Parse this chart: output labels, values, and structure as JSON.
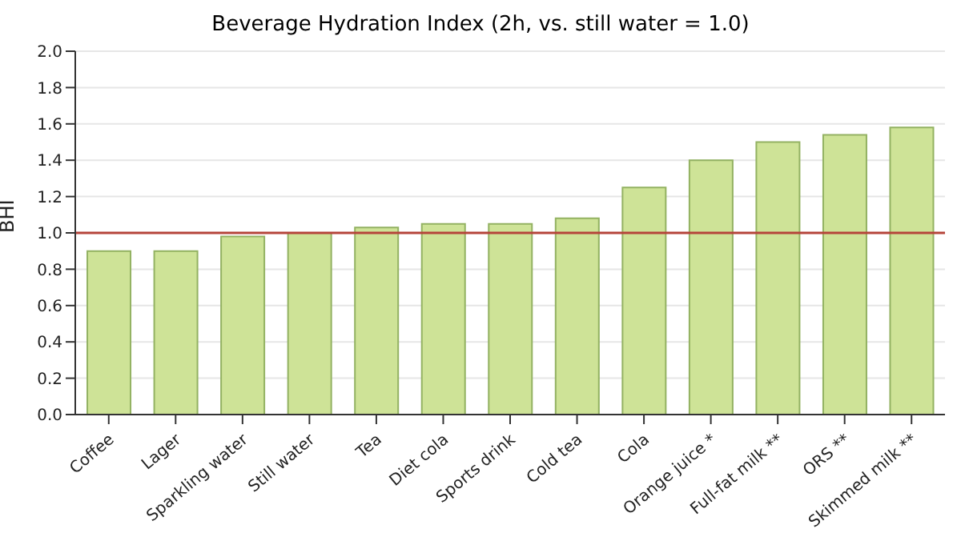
{
  "chart_data": {
    "type": "bar",
    "title": "Beverage Hydration Index (2h, vs. still water = 1.0)",
    "ylabel": "BHI",
    "categories": [
      "Coffee",
      "Lager",
      "Sparkling water",
      "Still water",
      "Tea",
      "Diet cola",
      "Sports drink",
      "Cold tea",
      "Cola",
      "Orange juice *",
      "Full-fat milk **",
      "ORS **",
      "Skimmed milk **"
    ],
    "values": [
      0.9,
      0.9,
      0.98,
      1.0,
      1.03,
      1.05,
      1.05,
      1.08,
      1.25,
      1.4,
      1.5,
      1.54,
      1.58
    ],
    "color": "#cee397",
    "ylim": [
      0,
      2
    ],
    "yticks": [
      {
        "value": 0,
        "label": "0.0"
      },
      {
        "value": 0.2,
        "label": "0.2"
      },
      {
        "value": 0.4,
        "label": "0.4"
      },
      {
        "value": 0.6,
        "label": "0.6"
      },
      {
        "value": 0.8,
        "label": "0.8"
      },
      {
        "value": 1,
        "label": "1.0"
      },
      {
        "value": 1.2,
        "label": "1.2"
      },
      {
        "value": 1.4,
        "label": "1.4"
      },
      {
        "value": 1.6,
        "label": "1.6"
      },
      {
        "value": 1.8,
        "label": "1.8"
      },
      {
        "value": 2,
        "label": "2.0"
      }
    ],
    "grid": "y",
    "ref_lines": [
      {
        "axis": "y",
        "value": 1,
        "color": "#b5443a"
      }
    ]
  }
}
